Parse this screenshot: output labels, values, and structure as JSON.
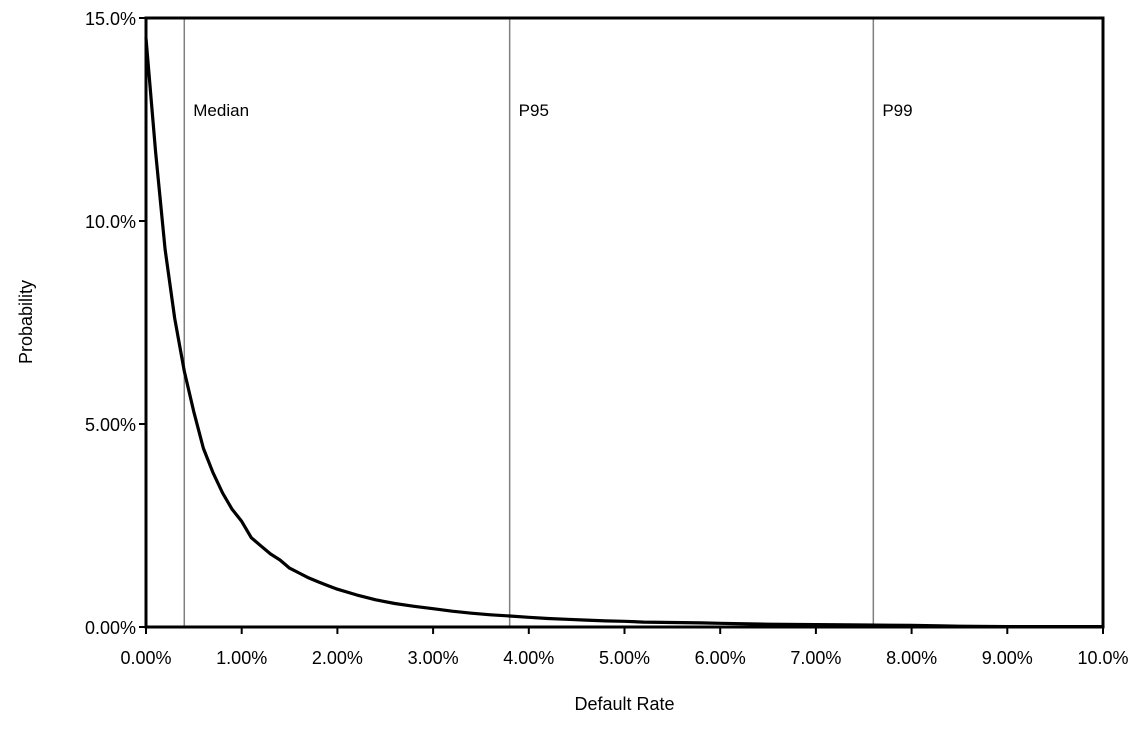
{
  "chart_data": {
    "type": "line",
    "title": "",
    "xlabel": "Default Rate",
    "ylabel": "Probability",
    "xlim": [
      0,
      0.1
    ],
    "ylim": [
      0,
      0.15
    ],
    "grid": false,
    "legend": "none",
    "x_ticks": [
      {
        "value": 0.0,
        "label": "0.00%"
      },
      {
        "value": 0.01,
        "label": "1.00%"
      },
      {
        "value": 0.02,
        "label": "2.00%"
      },
      {
        "value": 0.03,
        "label": "3.00%"
      },
      {
        "value": 0.04,
        "label": "4.00%"
      },
      {
        "value": 0.05,
        "label": "5.00%"
      },
      {
        "value": 0.06,
        "label": "6.00%"
      },
      {
        "value": 0.07,
        "label": "7.00%"
      },
      {
        "value": 0.08,
        "label": "8.00%"
      },
      {
        "value": 0.09,
        "label": "9.00%"
      },
      {
        "value": 0.1,
        "label": "10.0%"
      }
    ],
    "y_ticks": [
      {
        "value": 0.0,
        "label": "0.00%"
      },
      {
        "value": 0.05,
        "label": "5.00%"
      },
      {
        "value": 0.1,
        "label": "10.0%"
      },
      {
        "value": 0.15,
        "label": "15.0%"
      }
    ],
    "reference_lines": [
      {
        "label": "Median",
        "x": 0.004
      },
      {
        "label": "P95",
        "x": 0.038
      },
      {
        "label": "P99",
        "x": 0.076
      }
    ],
    "series": [
      {
        "color": "#000000",
        "x": [
          0.0,
          0.001,
          0.002,
          0.003,
          0.004,
          0.005,
          0.006,
          0.007,
          0.008,
          0.009,
          0.01,
          0.011,
          0.012,
          0.013,
          0.014,
          0.015,
          0.016,
          0.017,
          0.018,
          0.019,
          0.02,
          0.022,
          0.024,
          0.026,
          0.028,
          0.03,
          0.032,
          0.034,
          0.036,
          0.038,
          0.04,
          0.042,
          0.044,
          0.046,
          0.048,
          0.05,
          0.052,
          0.055,
          0.058,
          0.06,
          0.065,
          0.07,
          0.075,
          0.08,
          0.083,
          0.085,
          0.09,
          0.095,
          0.1
        ],
        "y": [
          0.145,
          0.117,
          0.093,
          0.076,
          0.063,
          0.053,
          0.044,
          0.038,
          0.033,
          0.029,
          0.026,
          0.022,
          0.02,
          0.018,
          0.0165,
          0.0145,
          0.0133,
          0.0121,
          0.0111,
          0.0102,
          0.0093,
          0.0079,
          0.0067,
          0.0058,
          0.0051,
          0.0045,
          0.0039,
          0.0034,
          0.003,
          0.0027,
          0.0024,
          0.0021,
          0.0019,
          0.0017,
          0.0015,
          0.0014,
          0.0012,
          0.0011,
          0.001,
          0.0009,
          0.0007,
          0.0006,
          0.0005,
          0.0004,
          0.0003,
          0.0002,
          0.0001,
          0.0001,
          0.0001
        ]
      }
    ],
    "colors": {
      "line": "#000000",
      "reference_line": "#808080",
      "frame": "#000000",
      "background": "#ffffff"
    }
  }
}
